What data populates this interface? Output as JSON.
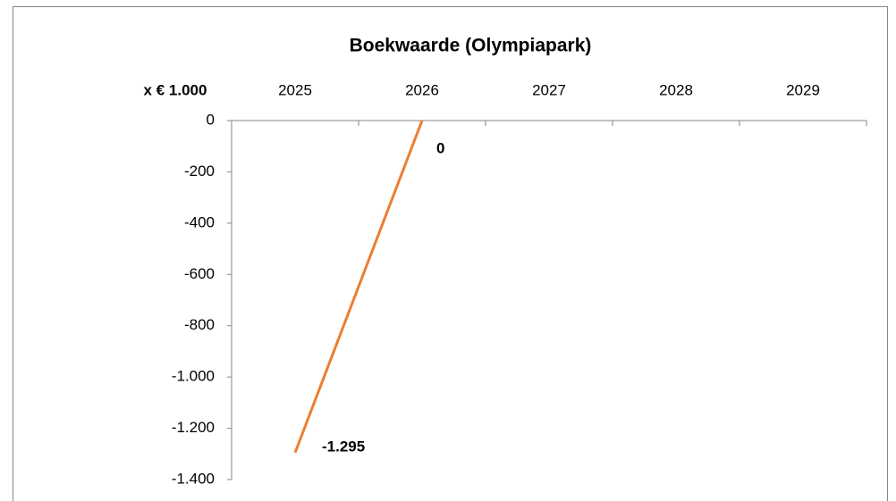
{
  "chart_data": {
    "type": "line",
    "title": "Boekwaarde (Olympiapark)",
    "y_label": "x € 1.000",
    "categories": [
      "2025",
      "2026",
      "2027",
      "2028",
      "2029"
    ],
    "series": [
      {
        "name": "Boekwaarde",
        "color": "#ED7D31",
        "values": [
          -1295,
          0,
          null,
          null,
          null
        ],
        "value_labels": [
          "-1.295",
          "0",
          null,
          null,
          null
        ]
      }
    ],
    "ylim": [
      -1400,
      0
    ],
    "yticks": [
      0,
      -200,
      -400,
      -600,
      -800,
      {
        "value": -1000,
        "label": "-1.000"
      },
      {
        "value": -1200,
        "label": "-1.200"
      },
      {
        "value": -1400,
        "label": "-1.400"
      }
    ],
    "legend": false
  }
}
